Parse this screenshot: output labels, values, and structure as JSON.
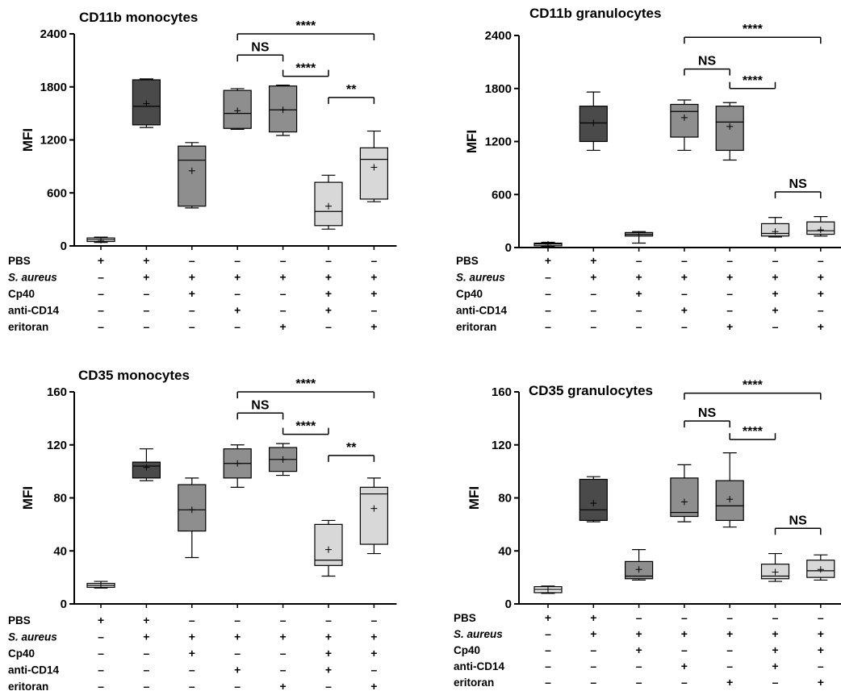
{
  "chart_data": [
    {
      "type": "box",
      "title": "CD11b monocytes",
      "ylabel": "MFI",
      "ylim": [
        0,
        2400
      ],
      "yticks": [
        "0",
        "600",
        "1200",
        "1800",
        "2400"
      ],
      "boxes": [
        {
          "fill": "#f0f0f0",
          "min": 40,
          "q1": 50,
          "median": 70,
          "mean": 65,
          "q3": 90,
          "max": 100
        },
        {
          "fill": "#4a4a4a",
          "min": 1340,
          "q1": 1370,
          "median": 1580,
          "mean": 1610,
          "q3": 1880,
          "max": 1890
        },
        {
          "fill": "#8e8e8e",
          "min": 430,
          "q1": 450,
          "median": 970,
          "mean": 850,
          "q3": 1130,
          "max": 1170
        },
        {
          "fill": "#8e8e8e",
          "min": 1320,
          "q1": 1330,
          "median": 1500,
          "mean": 1530,
          "q3": 1760,
          "max": 1780
        },
        {
          "fill": "#8e8e8e",
          "min": 1250,
          "q1": 1290,
          "median": 1540,
          "mean": 1540,
          "q3": 1810,
          "max": 1820
        },
        {
          "fill": "#d8d8d8",
          "min": 190,
          "q1": 230,
          "median": 390,
          "mean": 450,
          "q3": 720,
          "max": 800
        },
        {
          "fill": "#d8d8d8",
          "min": 500,
          "q1": 530,
          "median": 980,
          "mean": 890,
          "q3": 1110,
          "max": 1300
        }
      ],
      "brackets": [
        {
          "label": "****",
          "from": 3,
          "to": 6,
          "level": 2400,
          "ends": "down"
        },
        {
          "label": "NS",
          "from": 3,
          "to": 4,
          "level": 2160,
          "ends": "down"
        },
        {
          "label": "****",
          "from": 4,
          "to": 5,
          "level": 1920,
          "ends": "up"
        },
        {
          "label": "**",
          "from": 5,
          "to": 6,
          "level": 1680,
          "ends": "down"
        }
      ]
    },
    {
      "type": "box",
      "title": "CD11b granulocytes",
      "ylabel": "MFI",
      "ylim": [
        0,
        2400
      ],
      "yticks": [
        "0",
        "600",
        "1200",
        "1800",
        "2400"
      ],
      "boxes": [
        {
          "fill": "#f0f0f0",
          "min": 10,
          "q1": 20,
          "median": 40,
          "mean": 38,
          "q3": 50,
          "max": 60
        },
        {
          "fill": "#4a4a4a",
          "min": 1100,
          "q1": 1200,
          "median": 1410,
          "mean": 1410,
          "q3": 1600,
          "max": 1760
        },
        {
          "fill": "#8e8e8e",
          "min": 50,
          "q1": 130,
          "median": 150,
          "mean": 150,
          "q3": 170,
          "max": 180
        },
        {
          "fill": "#8e8e8e",
          "min": 1100,
          "q1": 1250,
          "median": 1540,
          "mean": 1470,
          "q3": 1620,
          "max": 1670
        },
        {
          "fill": "#8e8e8e",
          "min": 990,
          "q1": 1100,
          "median": 1420,
          "mean": 1370,
          "q3": 1600,
          "max": 1640
        },
        {
          "fill": "#d8d8d8",
          "min": 120,
          "q1": 130,
          "median": 160,
          "mean": 180,
          "q3": 270,
          "max": 340
        },
        {
          "fill": "#d8d8d8",
          "min": 130,
          "q1": 150,
          "median": 190,
          "mean": 200,
          "q3": 290,
          "max": 350
        }
      ],
      "brackets": [
        {
          "label": "****",
          "from": 3,
          "to": 6,
          "level": 2380,
          "ends": "down"
        },
        {
          "label": "NS",
          "from": 3,
          "to": 4,
          "level": 2020,
          "ends": "down"
        },
        {
          "label": "****",
          "from": 4,
          "to": 5,
          "level": 1800,
          "ends": "up"
        },
        {
          "label": "NS",
          "from": 5,
          "to": 6,
          "level": 630,
          "ends": "down"
        }
      ]
    },
    {
      "type": "box",
      "title": "CD35 monocytes",
      "ylabel": "MFI",
      "ylim": [
        0,
        160
      ],
      "yticks": [
        "0",
        "40",
        "80",
        "120",
        "160"
      ],
      "boxes": [
        {
          "fill": "#f0f0f0",
          "min": 12,
          "q1": 12.5,
          "median": 14,
          "mean": 14,
          "q3": 15.5,
          "max": 17
        },
        {
          "fill": "#4a4a4a",
          "min": 93,
          "q1": 95,
          "median": 104,
          "mean": 103,
          "q3": 107,
          "max": 117
        },
        {
          "fill": "#8e8e8e",
          "min": 35,
          "q1": 55,
          "median": 71,
          "mean": 71,
          "q3": 90,
          "max": 95
        },
        {
          "fill": "#8e8e8e",
          "min": 88,
          "q1": 95,
          "median": 106,
          "mean": 106,
          "q3": 117,
          "max": 120
        },
        {
          "fill": "#8e8e8e",
          "min": 97,
          "q1": 100,
          "median": 109,
          "mean": 109,
          "q3": 118,
          "max": 121
        },
        {
          "fill": "#d8d8d8",
          "min": 21,
          "q1": 29,
          "median": 33,
          "mean": 41,
          "q3": 60,
          "max": 63
        },
        {
          "fill": "#d8d8d8",
          "min": 38,
          "q1": 45,
          "median": 83,
          "mean": 72,
          "q3": 88,
          "max": 95
        }
      ],
      "brackets": [
        {
          "label": "****",
          "from": 3,
          "to": 6,
          "level": 160,
          "ends": "down"
        },
        {
          "label": "NS",
          "from": 3,
          "to": 4,
          "level": 144,
          "ends": "down"
        },
        {
          "label": "****",
          "from": 4,
          "to": 5,
          "level": 128,
          "ends": "up"
        },
        {
          "label": "**",
          "from": 5,
          "to": 6,
          "level": 112,
          "ends": "down"
        }
      ]
    },
    {
      "type": "box",
      "title": "CD35 granulocytes",
      "ylabel": "MFI",
      "ylim": [
        0,
        160
      ],
      "yticks": [
        "0",
        "40",
        "80",
        "120",
        "160"
      ],
      "boxes": [
        {
          "fill": "#f0f0f0",
          "min": 8,
          "q1": 8.5,
          "median": 11,
          "mean": 11,
          "q3": 13,
          "max": 13.5
        },
        {
          "fill": "#4a4a4a",
          "min": 62,
          "q1": 63,
          "median": 71,
          "mean": 76,
          "q3": 94,
          "max": 96
        },
        {
          "fill": "#8e8e8e",
          "min": 18,
          "q1": 19,
          "median": 21,
          "mean": 26,
          "q3": 32,
          "max": 41
        },
        {
          "fill": "#8e8e8e",
          "min": 62,
          "q1": 66,
          "median": 69,
          "mean": 77,
          "q3": 95,
          "max": 105
        },
        {
          "fill": "#8e8e8e",
          "min": 58,
          "q1": 63,
          "median": 74,
          "mean": 79,
          "q3": 93,
          "max": 114
        },
        {
          "fill": "#d8d8d8",
          "min": 17,
          "q1": 19,
          "median": 21,
          "mean": 24,
          "q3": 30,
          "max": 38
        },
        {
          "fill": "#d8d8d8",
          "min": 18,
          "q1": 20,
          "median": 25,
          "mean": 26,
          "q3": 33,
          "max": 37
        }
      ],
      "brackets": [
        {
          "label": "****",
          "from": 3,
          "to": 6,
          "level": 159,
          "ends": "down"
        },
        {
          "label": "NS",
          "from": 3,
          "to": 4,
          "level": 138,
          "ends": "down"
        },
        {
          "label": "****",
          "from": 4,
          "to": 5,
          "level": 124,
          "ends": "up"
        },
        {
          "label": "NS",
          "from": 5,
          "to": 6,
          "level": 57,
          "ends": "down"
        }
      ]
    }
  ],
  "conditions": [
    {
      "label": "PBS",
      "italic": false,
      "symbols": [
        "+",
        "+",
        "–",
        "–",
        "–",
        "–",
        "–"
      ]
    },
    {
      "label": "S. aureus",
      "italic": true,
      "symbols": [
        "–",
        "+",
        "+",
        "+",
        "+",
        "+",
        "+"
      ]
    },
    {
      "label": "Cp40",
      "italic": false,
      "symbols": [
        "–",
        "–",
        "+",
        "–",
        "–",
        "+",
        "+"
      ]
    },
    {
      "label": "anti-CD14",
      "italic": false,
      "symbols": [
        "–",
        "–",
        "–",
        "+",
        "–",
        "+",
        "–"
      ]
    },
    {
      "label": "eritoran",
      "italic": false,
      "symbols": [
        "–",
        "–",
        "–",
        "–",
        "+",
        "–",
        "+"
      ]
    }
  ]
}
